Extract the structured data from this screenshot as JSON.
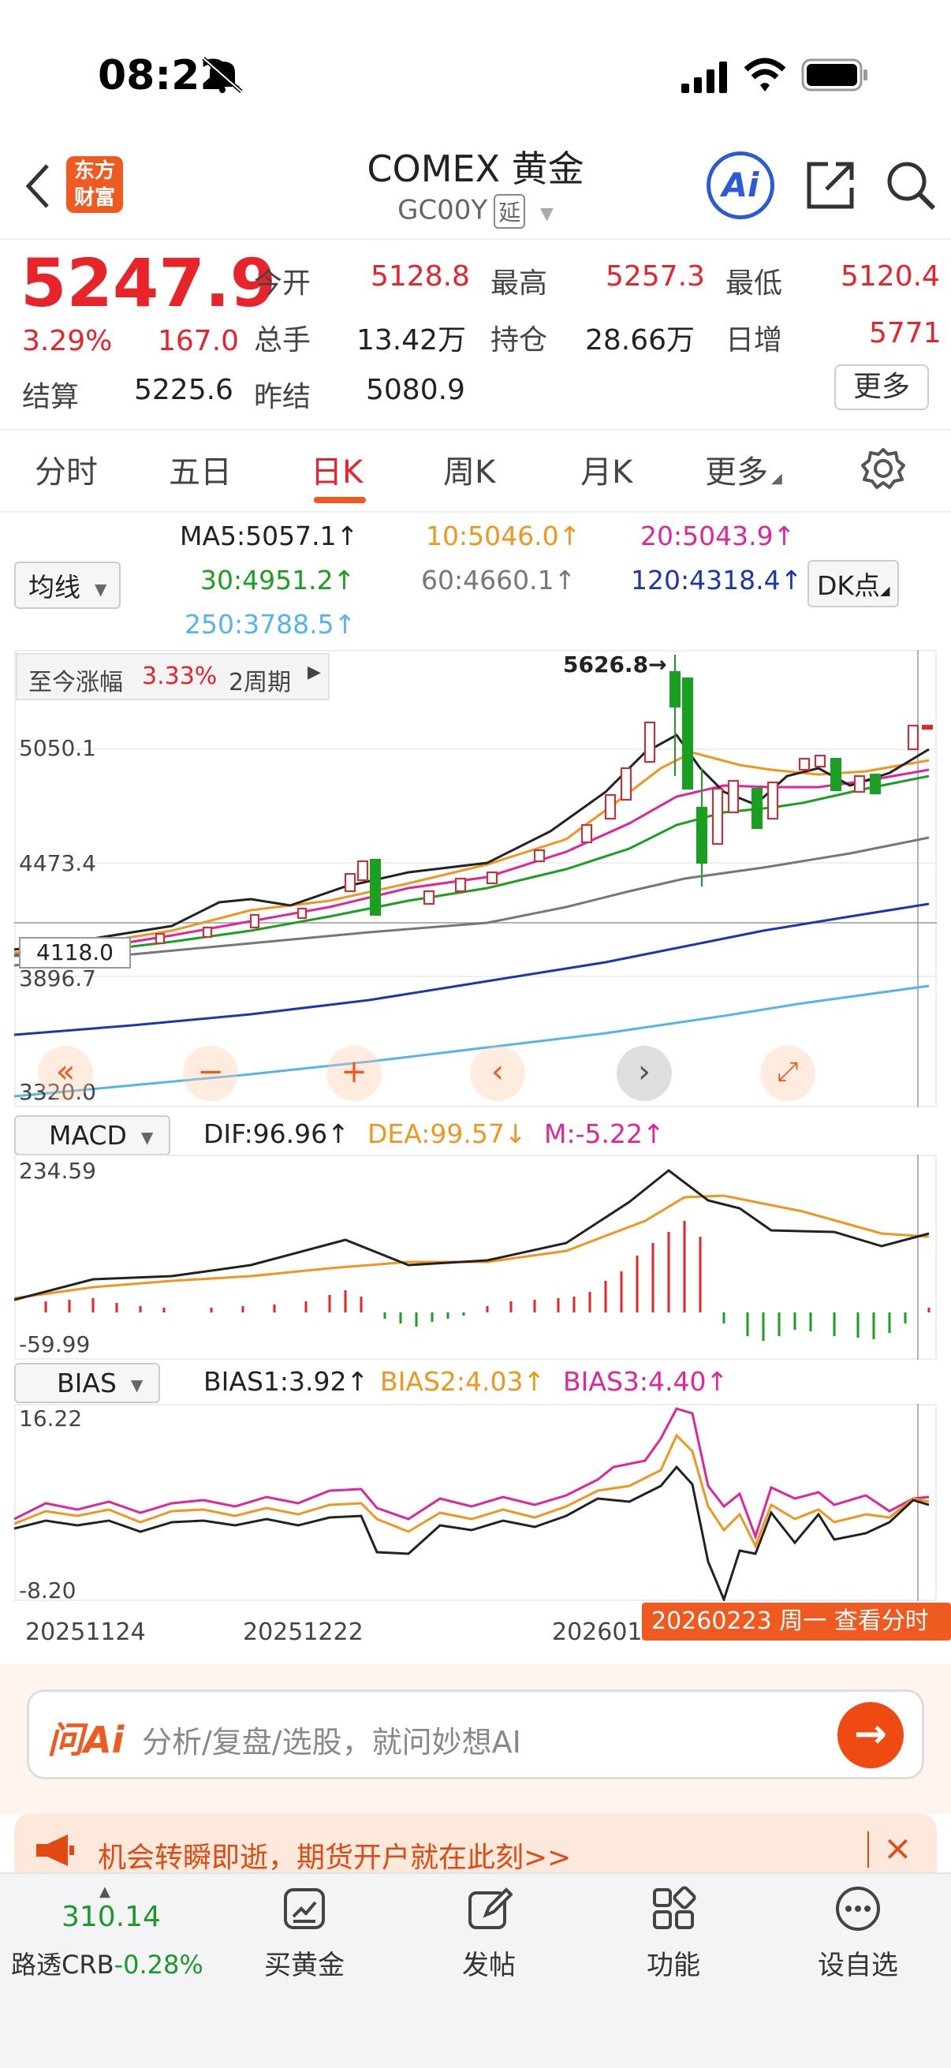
{
  "status_bar": {
    "time": "08:22"
  },
  "header": {
    "logo_text_1": "东方",
    "logo_text_2": "财富",
    "title": "COMEX 黄金",
    "code": "GC00Y",
    "badge": "延",
    "ai_label": "Ai"
  },
  "quote": {
    "price": "5247.9",
    "change_pct": "3.29%",
    "change": "167.0",
    "open_label": "今开",
    "open": "5128.8",
    "high_label": "最高",
    "high": "5257.3",
    "low_label": "最低",
    "low": "5120.4",
    "volume_label": "总手",
    "volume": "13.42万",
    "position_label": "持仓",
    "position": "28.66万",
    "daily_inc_label": "日增",
    "daily_inc": "5771",
    "settle_label": "结算",
    "settle": "5225.6",
    "prev_settle_label": "昨结",
    "prev_settle": "5080.9",
    "more_label": "更多"
  },
  "tabs": [
    {
      "label": "分时"
    },
    {
      "label": "五日"
    },
    {
      "label": "日K"
    },
    {
      "label": "周K"
    },
    {
      "label": "月K"
    },
    {
      "label": "更多"
    }
  ],
  "ma": {
    "selector": "均线",
    "ma5": "MA5:5057.1↑",
    "ma10": "10:5046.0↑",
    "ma20": "20:5043.9↑",
    "ma30": "30:4951.2↑",
    "ma60": "60:4660.1↑",
    "ma120": "120:4318.4↑",
    "ma250": "250:3788.5↑",
    "dk_label": "DK点",
    "colors": {
      "ma5": "#222222",
      "ma10": "#f0961e",
      "ma20": "#e0259b",
      "ma30": "#1aa020",
      "ma60": "#777777",
      "ma120": "#1c35b0",
      "ma250": "#55b4ea"
    }
  },
  "kline": {
    "range_label": "至今涨幅",
    "range_value": "3.33%",
    "range_period": "2周期",
    "peak_label": "5626.8",
    "y_labels": [
      "5050.1",
      "4473.4",
      "3896.7",
      "3320.0"
    ],
    "cursor_label": "4118.0"
  },
  "macd": {
    "selector": "MACD",
    "dif": "DIF:96.96↑",
    "dea": "DEA:99.57↓",
    "m": "M:-5.22↑",
    "top": "234.59",
    "bottom": "-59.99"
  },
  "bias": {
    "selector": "BIAS",
    "b1": "BIAS1:3.92↑",
    "b2": "BIAS2:4.03↑",
    "b3": "BIAS3:4.40↑",
    "top": "16.22",
    "bottom": "-8.20"
  },
  "x_axis": {
    "d1": "20251124",
    "d2": "20251222",
    "d3": "202601",
    "tip": "20260223 周一 查看分时"
  },
  "ai_search": {
    "logo": "问Ai",
    "placeholder": "分析/复盘/选股，就问妙想AI"
  },
  "promo": {
    "text": "机会转瞬即逝，期货开户就在此刻>>"
  },
  "bottom_nav": {
    "index_value": "310.14",
    "index_label": "路透CRB",
    "index_change": "-0.28%",
    "items": [
      {
        "label": "买黄金"
      },
      {
        "label": "发帖"
      },
      {
        "label": "功能"
      },
      {
        "label": "设自选"
      }
    ]
  }
}
